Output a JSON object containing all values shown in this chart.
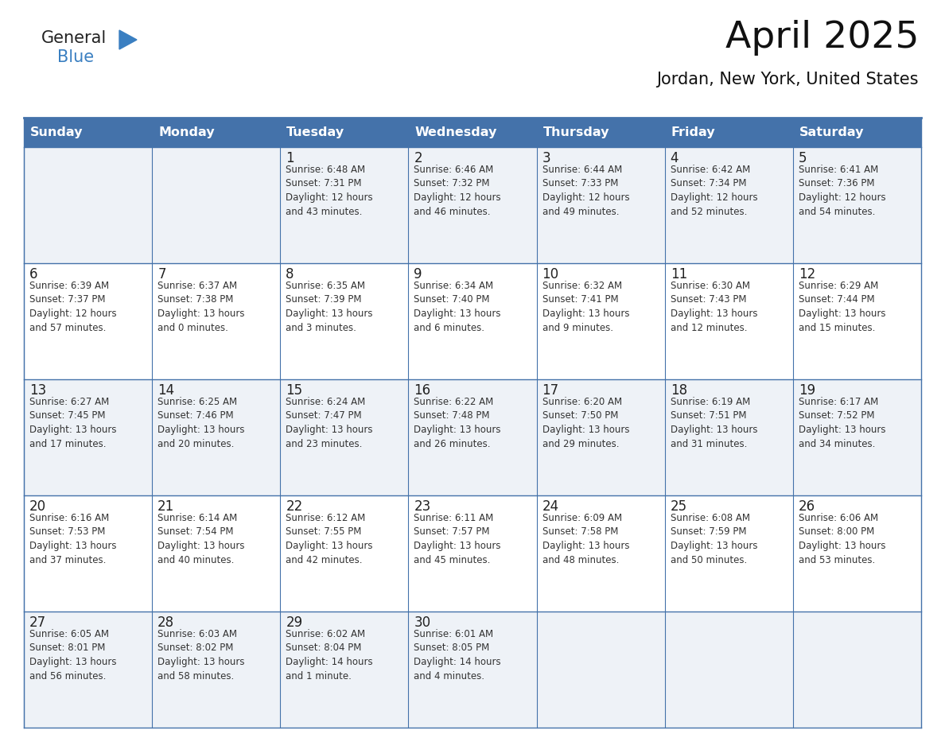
{
  "title": "April 2025",
  "subtitle": "Jordan, New York, United States",
  "header_bg_color": "#4472aa",
  "header_text_color": "#ffffff",
  "row_bg_even": "#eef2f7",
  "row_bg_odd": "#ffffff",
  "border_color": "#4472aa",
  "cell_border_color": "#4472aa",
  "day_names": [
    "Sunday",
    "Monday",
    "Tuesday",
    "Wednesday",
    "Thursday",
    "Friday",
    "Saturday"
  ],
  "cell_text_color": "#333333",
  "day_number_color": "#222222",
  "logo_general_color": "#222222",
  "logo_blue_color": "#3a7fc1",
  "logo_triangle_color": "#3a7fc1",
  "title_color": "#111111",
  "subtitle_color": "#111111",
  "calendar": [
    [
      {
        "day": "",
        "info": ""
      },
      {
        "day": "",
        "info": ""
      },
      {
        "day": "1",
        "info": "Sunrise: 6:48 AM\nSunset: 7:31 PM\nDaylight: 12 hours\nand 43 minutes."
      },
      {
        "day": "2",
        "info": "Sunrise: 6:46 AM\nSunset: 7:32 PM\nDaylight: 12 hours\nand 46 minutes."
      },
      {
        "day": "3",
        "info": "Sunrise: 6:44 AM\nSunset: 7:33 PM\nDaylight: 12 hours\nand 49 minutes."
      },
      {
        "day": "4",
        "info": "Sunrise: 6:42 AM\nSunset: 7:34 PM\nDaylight: 12 hours\nand 52 minutes."
      },
      {
        "day": "5",
        "info": "Sunrise: 6:41 AM\nSunset: 7:36 PM\nDaylight: 12 hours\nand 54 minutes."
      }
    ],
    [
      {
        "day": "6",
        "info": "Sunrise: 6:39 AM\nSunset: 7:37 PM\nDaylight: 12 hours\nand 57 minutes."
      },
      {
        "day": "7",
        "info": "Sunrise: 6:37 AM\nSunset: 7:38 PM\nDaylight: 13 hours\nand 0 minutes."
      },
      {
        "day": "8",
        "info": "Sunrise: 6:35 AM\nSunset: 7:39 PM\nDaylight: 13 hours\nand 3 minutes."
      },
      {
        "day": "9",
        "info": "Sunrise: 6:34 AM\nSunset: 7:40 PM\nDaylight: 13 hours\nand 6 minutes."
      },
      {
        "day": "10",
        "info": "Sunrise: 6:32 AM\nSunset: 7:41 PM\nDaylight: 13 hours\nand 9 minutes."
      },
      {
        "day": "11",
        "info": "Sunrise: 6:30 AM\nSunset: 7:43 PM\nDaylight: 13 hours\nand 12 minutes."
      },
      {
        "day": "12",
        "info": "Sunrise: 6:29 AM\nSunset: 7:44 PM\nDaylight: 13 hours\nand 15 minutes."
      }
    ],
    [
      {
        "day": "13",
        "info": "Sunrise: 6:27 AM\nSunset: 7:45 PM\nDaylight: 13 hours\nand 17 minutes."
      },
      {
        "day": "14",
        "info": "Sunrise: 6:25 AM\nSunset: 7:46 PM\nDaylight: 13 hours\nand 20 minutes."
      },
      {
        "day": "15",
        "info": "Sunrise: 6:24 AM\nSunset: 7:47 PM\nDaylight: 13 hours\nand 23 minutes."
      },
      {
        "day": "16",
        "info": "Sunrise: 6:22 AM\nSunset: 7:48 PM\nDaylight: 13 hours\nand 26 minutes."
      },
      {
        "day": "17",
        "info": "Sunrise: 6:20 AM\nSunset: 7:50 PM\nDaylight: 13 hours\nand 29 minutes."
      },
      {
        "day": "18",
        "info": "Sunrise: 6:19 AM\nSunset: 7:51 PM\nDaylight: 13 hours\nand 31 minutes."
      },
      {
        "day": "19",
        "info": "Sunrise: 6:17 AM\nSunset: 7:52 PM\nDaylight: 13 hours\nand 34 minutes."
      }
    ],
    [
      {
        "day": "20",
        "info": "Sunrise: 6:16 AM\nSunset: 7:53 PM\nDaylight: 13 hours\nand 37 minutes."
      },
      {
        "day": "21",
        "info": "Sunrise: 6:14 AM\nSunset: 7:54 PM\nDaylight: 13 hours\nand 40 minutes."
      },
      {
        "day": "22",
        "info": "Sunrise: 6:12 AM\nSunset: 7:55 PM\nDaylight: 13 hours\nand 42 minutes."
      },
      {
        "day": "23",
        "info": "Sunrise: 6:11 AM\nSunset: 7:57 PM\nDaylight: 13 hours\nand 45 minutes."
      },
      {
        "day": "24",
        "info": "Sunrise: 6:09 AM\nSunset: 7:58 PM\nDaylight: 13 hours\nand 48 minutes."
      },
      {
        "day": "25",
        "info": "Sunrise: 6:08 AM\nSunset: 7:59 PM\nDaylight: 13 hours\nand 50 minutes."
      },
      {
        "day": "26",
        "info": "Sunrise: 6:06 AM\nSunset: 8:00 PM\nDaylight: 13 hours\nand 53 minutes."
      }
    ],
    [
      {
        "day": "27",
        "info": "Sunrise: 6:05 AM\nSunset: 8:01 PM\nDaylight: 13 hours\nand 56 minutes."
      },
      {
        "day": "28",
        "info": "Sunrise: 6:03 AM\nSunset: 8:02 PM\nDaylight: 13 hours\nand 58 minutes."
      },
      {
        "day": "29",
        "info": "Sunrise: 6:02 AM\nSunset: 8:04 PM\nDaylight: 14 hours\nand 1 minute."
      },
      {
        "day": "30",
        "info": "Sunrise: 6:01 AM\nSunset: 8:05 PM\nDaylight: 14 hours\nand 4 minutes."
      },
      {
        "day": "",
        "info": ""
      },
      {
        "day": "",
        "info": ""
      },
      {
        "day": "",
        "info": ""
      }
    ]
  ]
}
